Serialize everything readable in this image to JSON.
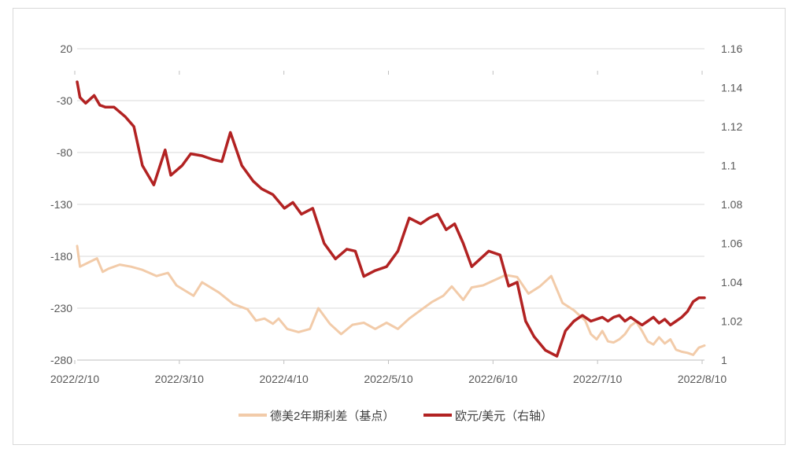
{
  "chart_data": {
    "type": "line",
    "categories": [
      "2022/2/10",
      "2022/3/10",
      "2022/4/10",
      "2022/5/10",
      "2022/6/10",
      "2022/7/10",
      "2022/8/10"
    ],
    "ylim_left": [
      -280,
      20
    ],
    "ylim_right": [
      1.0,
      1.16
    ],
    "yticks_left": [
      "20",
      "-30",
      "-80",
      "-130",
      "-180",
      "-230",
      "-280"
    ],
    "yticks_right": [
      "1.16",
      "1.14",
      "1.12",
      "1.1",
      "1.08",
      "1.06",
      "1.04",
      "1.02",
      "1"
    ],
    "grid": true,
    "legend_position": "bottom",
    "series": [
      {
        "name": "德美2年期利差（基点）",
        "axis": "left",
        "color": "#f2cba9",
        "x": [
          0,
          1,
          4,
          7,
          9,
          11,
          15,
          19,
          23,
          28,
          32,
          35,
          38,
          41,
          44,
          50,
          55,
          60,
          63,
          66,
          69,
          71,
          74,
          78,
          82,
          85,
          89,
          93,
          97,
          101,
          105,
          109,
          113,
          117,
          121,
          125,
          129,
          132,
          136,
          139,
          143,
          147,
          151,
          155,
          159,
          163,
          167,
          171,
          175,
          179,
          181,
          183,
          185,
          187,
          189,
          191,
          193,
          195,
          197,
          199,
          201,
          203,
          205,
          207,
          209,
          211,
          213,
          215,
          217,
          219,
          221
        ],
        "values": [
          -170,
          -190,
          -186,
          -182,
          -195,
          -192,
          -188,
          -190,
          -193,
          -199,
          -196,
          -208,
          -213,
          -218,
          -205,
          -215,
          -226,
          -231,
          -242,
          -240,
          -245,
          -240,
          -250,
          -253,
          -250,
          -230,
          -245,
          -255,
          -246,
          -244,
          -250,
          -244,
          -250,
          -240,
          -232,
          -224,
          -218,
          -209,
          -222,
          -210,
          -208,
          -203,
          -198,
          -200,
          -216,
          -209,
          -199,
          -225,
          -232,
          -242,
          -255,
          -260,
          -252,
          -262,
          -263,
          -260,
          -255,
          -247,
          -243,
          -252,
          -262,
          -265,
          -258,
          -264,
          -260,
          -270,
          -272,
          -273,
          -275,
          -268,
          -266
        ]
      },
      {
        "name": "欧元/美元（右轴）",
        "axis": "right",
        "color": "#b22222",
        "x": [
          0,
          1,
          3,
          6,
          8,
          10,
          13,
          17,
          20,
          23,
          27,
          31,
          33,
          37,
          40,
          44,
          48,
          51,
          54,
          58,
          62,
          65,
          69,
          73,
          76,
          79,
          83,
          87,
          91,
          95,
          98,
          101,
          105,
          109,
          113,
          117,
          121,
          124,
          127,
          130,
          133,
          136,
          139,
          142,
          145,
          149,
          152,
          155,
          158,
          161,
          165,
          169,
          172,
          175,
          178,
          181,
          183,
          185,
          187,
          189,
          191,
          193,
          195,
          197,
          199,
          201,
          203,
          205,
          207,
          209,
          211,
          213,
          215,
          217,
          219,
          221
        ],
        "values": [
          1.143,
          1.135,
          1.132,
          1.136,
          1.131,
          1.13,
          1.13,
          1.125,
          1.12,
          1.1,
          1.09,
          1.108,
          1.095,
          1.1,
          1.106,
          1.105,
          1.103,
          1.102,
          1.117,
          1.1,
          1.092,
          1.088,
          1.085,
          1.078,
          1.081,
          1.075,
          1.078,
          1.06,
          1.052,
          1.057,
          1.056,
          1.043,
          1.046,
          1.048,
          1.056,
          1.073,
          1.07,
          1.073,
          1.075,
          1.067,
          1.07,
          1.06,
          1.048,
          1.052,
          1.056,
          1.054,
          1.038,
          1.04,
          1.02,
          1.012,
          1.005,
          1.002,
          1.015,
          1.02,
          1.023,
          1.02,
          1.021,
          1.022,
          1.02,
          1.022,
          1.023,
          1.02,
          1.022,
          1.02,
          1.018,
          1.02,
          1.022,
          1.019,
          1.021,
          1.018,
          1.02,
          1.022,
          1.025,
          1.03,
          1.032,
          1.032
        ]
      }
    ]
  }
}
